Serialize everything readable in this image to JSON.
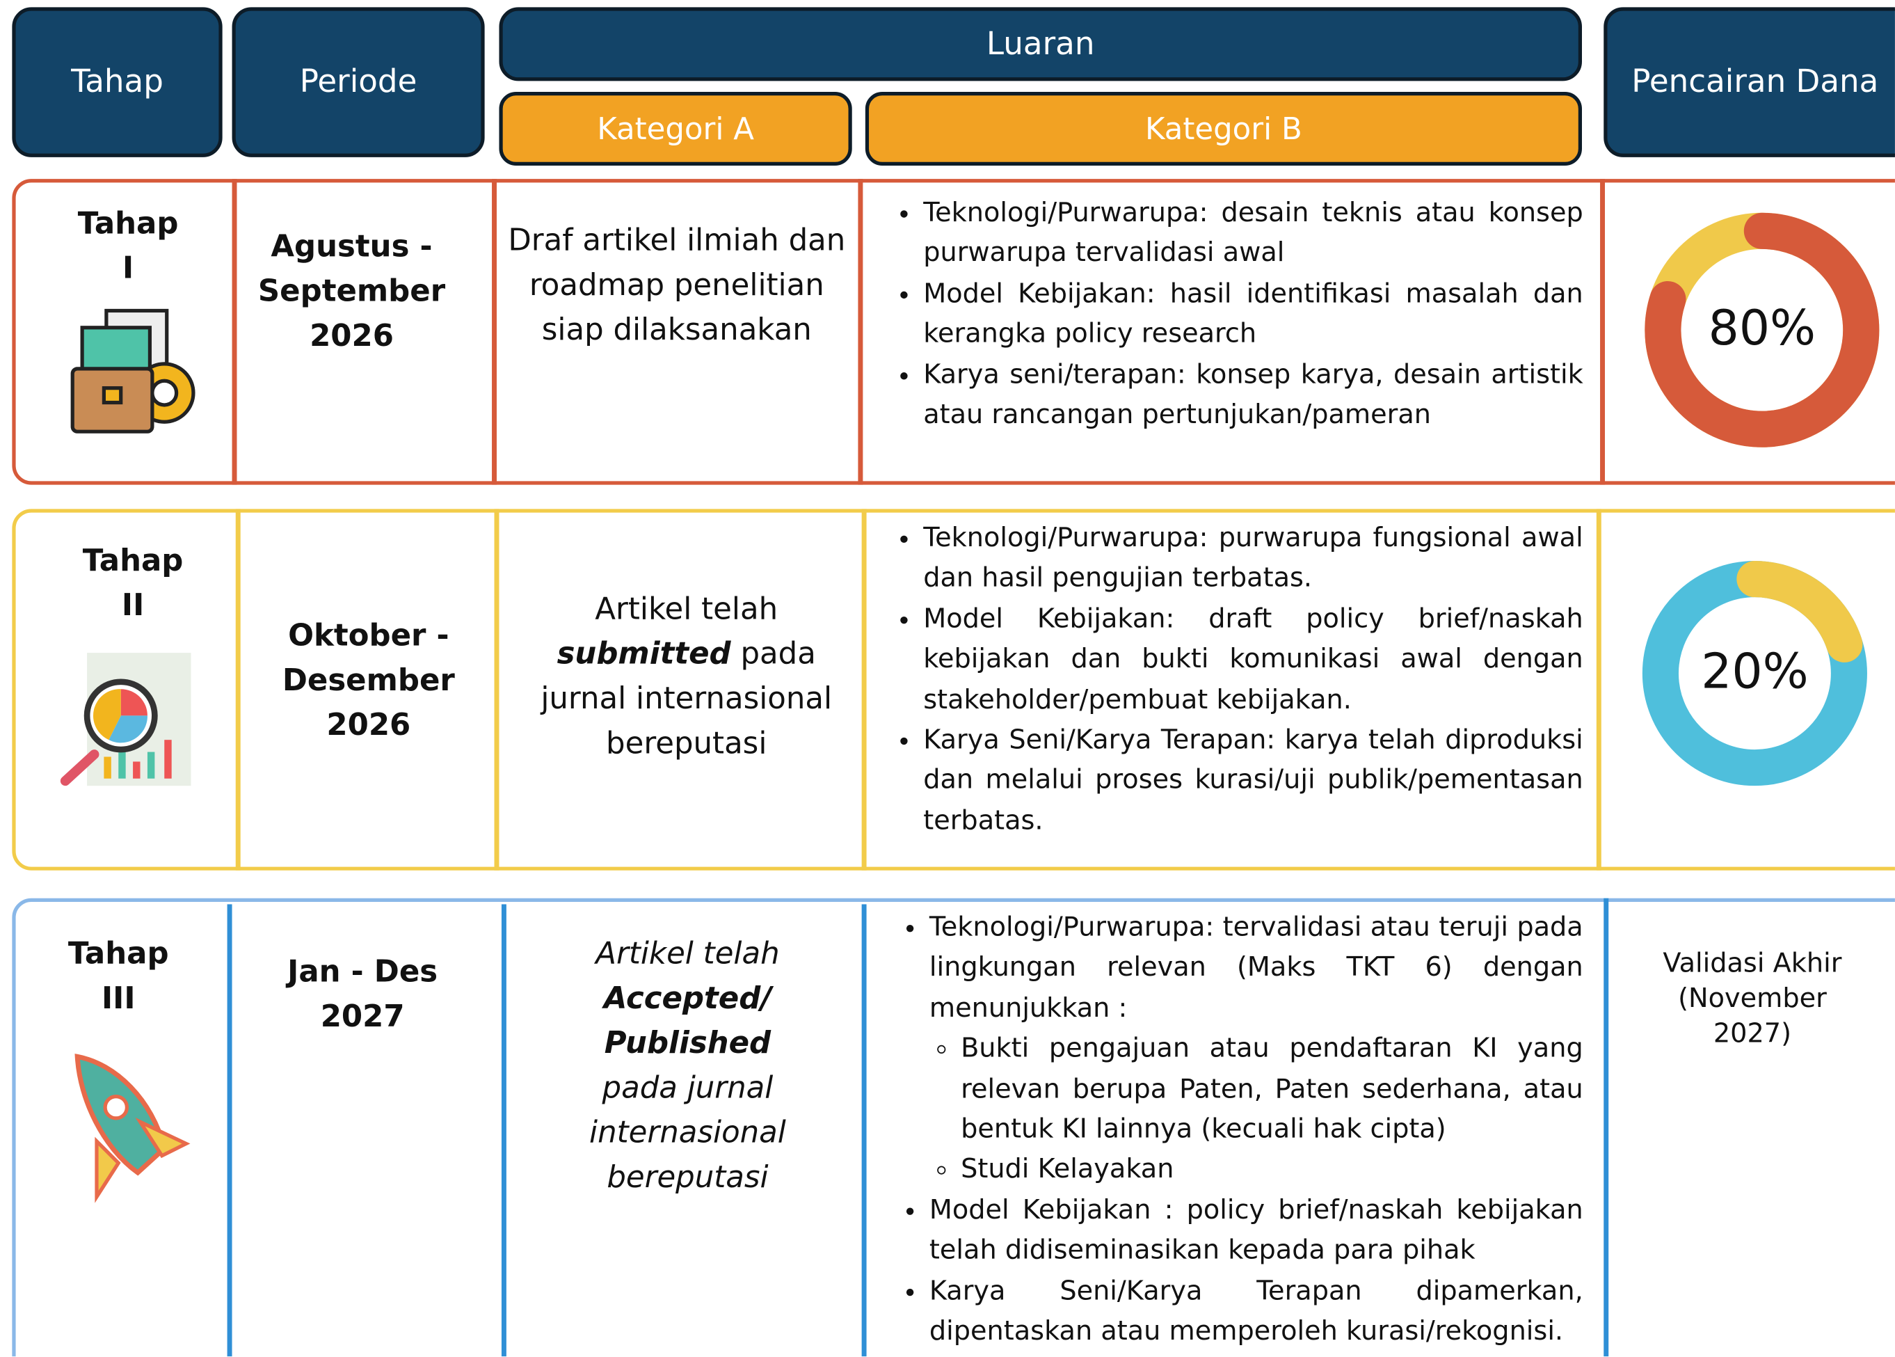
{
  "header": {
    "tahap": "Tahap",
    "periode": "Periode",
    "luaran": "Luaran",
    "kategori_a": "Kategori A",
    "kategori_b": "Kategori B",
    "pencairan": "Pencairan Dana"
  },
  "rows": [
    {
      "tahap": "Tahap I",
      "periode": "Agustus - September 2026",
      "kategori_a": [
        "Draf artikel ilmiah dan roadmap penelitian siap dilaksanakan"
      ],
      "kategori_b": [
        "Teknologi/Purwarupa: desain teknis atau konsep purwarupa tervalidasi awal",
        "Model Kebijakan: hasil identifikasi masalah dan kerangka policy research",
        "Karya seni/terapan: konsep karya, desain artistik atau rancangan pertunjukan/pameran"
      ],
      "pencairan": {
        "value": 80,
        "label": "80%"
      }
    },
    {
      "tahap": "Tahap II",
      "periode": "Oktober - Desember 2026",
      "kategori_a": [
        "Artikel telah",
        "submitted",
        "pada jurnal internasional bereputasi"
      ],
      "kategori_b": [
        "Teknologi/Purwarupa: purwarupa fungsional awal dan hasil pengujian terbatas.",
        "Model Kebijakan: draft policy brief/naskah kebijakan dan bukti komunikasi awal dengan stakeholder/pembuat kebijakan.",
        "Karya Seni/Karya Terapan: karya telah diproduksi dan melalui proses kurasi/uji publik/pementasan terbatas."
      ],
      "pencairan": {
        "value": 20,
        "label": "20%"
      }
    },
    {
      "tahap": "Tahap III",
      "periode": "Jan - Des 2027",
      "kategori_a": [
        "Artikel telah",
        "Accepted/ Published",
        "pada jurnal internasional bereputasi"
      ],
      "kategori_b": [
        {
          "text": "Teknologi/Purwarupa: tervalidasi atau teruji pada lingkungan relevan (Maks TKT 6) dengan menunjukkan :",
          "sub": [
            "Bukti pengajuan atau pendaftaran KI yang relevan berupa Paten, Paten sederhana, atau bentuk KI lainnya (kecuali hak cipta)",
            "Studi Kelayakan"
          ]
        },
        "Model Kebijakan : policy brief/naskah kebijakan telah didiseminasikan kepada para pihak",
        "Karya Seni/Karya Terapan dipamerkan, dipentaskan atau memperoleh kurasi/rekognisi."
      ],
      "pencairan": "Validasi Akhir (November 2027)"
    }
  ]
}
